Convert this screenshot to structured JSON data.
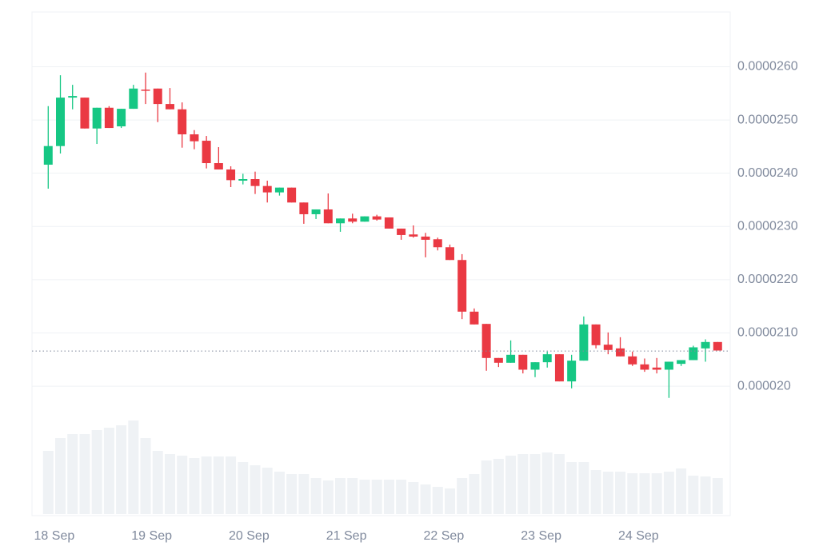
{
  "chart_data": {
    "type": "candlestick",
    "x": [
      -1.5,
      1.5,
      4.5,
      7.5,
      10.5,
      13.5,
      16.5,
      19.5,
      22.5,
      25.5,
      28.5,
      31.5,
      34.5,
      37.5,
      40.5,
      43.5,
      46.5,
      49.5,
      52.5,
      55.5,
      58.5,
      61.5,
      64.5,
      67.5,
      70.5,
      73.5,
      76.5,
      79.5,
      82.5,
      85.5,
      88.5,
      91.5,
      94.5,
      97.5,
      100.5,
      103.5,
      106.5,
      109.5,
      112.5,
      115.5,
      118.5,
      121.5,
      124.5,
      127.5,
      130.5,
      133.5,
      136.5,
      139.5,
      142.5,
      145.5,
      148.5,
      151.5,
      154.5,
      157.5,
      160.5,
      163.5
    ],
    "open": [
      2.416e-05,
      2.451e-05,
      2.542e-05,
      2.542e-05,
      2.484e-05,
      2.523e-05,
      2.488e-05,
      2.521e-05,
      2.557e-05,
      2.559e-05,
      2.53e-05,
      2.52e-05,
      2.473e-05,
      2.461e-05,
      2.419e-05,
      2.407e-05,
      2.386e-05,
      2.389e-05,
      2.376e-05,
      2.364e-05,
      2.373e-05,
      2.345e-05,
      2.323e-05,
      2.332e-05,
      2.306e-05,
      2.315e-05,
      2.309e-05,
      2.319e-05,
      2.317e-05,
      2.296e-05,
      2.285e-05,
      2.281e-05,
      2.276e-05,
      2.261e-05,
      2.237e-05,
      2.14e-05,
      2.117e-05,
      2.053e-05,
      2.044e-05,
      2.059e-05,
      2.031e-05,
      2.045e-05,
      2.06e-05,
      2.009e-05,
      2.048e-05,
      2.116e-05,
      2.078e-05,
      2.071e-05,
      2.056e-05,
      2.041e-05,
      2.035e-05,
      2.031e-05,
      2.042e-05,
      2.049e-05,
      2.071e-05,
      2.083e-05
    ],
    "high": [
      2.526e-05,
      2.584e-05,
      2.566e-05,
      2.542e-05,
      2.523e-05,
      2.526e-05,
      2.521e-05,
      2.566e-05,
      2.589e-05,
      2.559e-05,
      2.56e-05,
      2.533e-05,
      2.481e-05,
      2.47e-05,
      2.449e-05,
      2.413e-05,
      2.399e-05,
      2.403e-05,
      2.386e-05,
      2.373e-05,
      2.373e-05,
      2.345e-05,
      2.332e-05,
      2.362e-05,
      2.315e-05,
      2.324e-05,
      2.319e-05,
      2.322e-05,
      2.317e-05,
      2.296e-05,
      2.302e-05,
      2.288e-05,
      2.279e-05,
      2.266e-05,
      2.248e-05,
      2.146e-05,
      2.117e-05,
      2.053e-05,
      2.086e-05,
      2.059e-05,
      2.045e-05,
      2.065e-05,
      2.06e-05,
      2.059e-05,
      2.131e-05,
      2.116e-05,
      2.101e-05,
      2.092e-05,
      2.065e-05,
      2.052e-05,
      2.053e-05,
      2.046e-05,
      2.049e-05,
      2.076e-05,
      2.088e-05,
      2.083e-05
    ],
    "low": [
      2.371e-05,
      2.437e-05,
      2.52e-05,
      2.484e-05,
      2.455e-05,
      2.485e-05,
      2.485e-05,
      2.521e-05,
      2.53e-05,
      2.496e-05,
      2.52e-05,
      2.448e-05,
      2.445e-05,
      2.409e-05,
      2.407e-05,
      2.374e-05,
      2.379e-05,
      2.361e-05,
      2.345e-05,
      2.358e-05,
      2.345e-05,
      2.305e-05,
      2.314e-05,
      2.306e-05,
      2.29e-05,
      2.306e-05,
      2.309e-05,
      2.311e-05,
      2.296e-05,
      2.275e-05,
      2.279e-05,
      2.242e-05,
      2.255e-05,
      2.237e-05,
      2.126e-05,
      2.116e-05,
      2.029e-05,
      2.036e-05,
      2.044e-05,
      2.024e-05,
      2.017e-05,
      2.035e-05,
      2.009e-05,
      1.996e-05,
      2.048e-05,
      2.071e-05,
      2.06e-05,
      2.056e-05,
      2.038e-05,
      2.027e-05,
      2.024e-05,
      1.978e-05,
      2.038e-05,
      2.049e-05,
      2.046e-05,
      2.067e-05
    ],
    "close": [
      2.451e-05,
      2.542e-05,
      2.545e-05,
      2.484e-05,
      2.523e-05,
      2.485e-05,
      2.521e-05,
      2.559e-05,
      2.556e-05,
      2.53e-05,
      2.52e-05,
      2.473e-05,
      2.46e-05,
      2.419e-05,
      2.407e-05,
      2.387e-05,
      2.389e-05,
      2.376e-05,
      2.364e-05,
      2.373e-05,
      2.345e-05,
      2.323e-05,
      2.332e-05,
      2.306e-05,
      2.315e-05,
      2.309e-05,
      2.319e-05,
      2.313e-05,
      2.296e-05,
      2.284e-05,
      2.281e-05,
      2.275e-05,
      2.261e-05,
      2.237e-05,
      2.14e-05,
      2.116e-05,
      2.053e-05,
      2.044e-05,
      2.059e-05,
      2.031e-05,
      2.045e-05,
      2.06e-05,
      2.009e-05,
      2.048e-05,
      2.116e-05,
      2.077e-05,
      2.068e-05,
      2.056e-05,
      2.041e-05,
      2.031e-05,
      2.031e-05,
      2.046e-05,
      2.049e-05,
      2.073e-05,
      2.083e-05,
      2.067e-05
    ],
    "volume": [
      79,
      95,
      100,
      100,
      105,
      108,
      111,
      117,
      95,
      79,
      75,
      73,
      70,
      72,
      72,
      72,
      65,
      61,
      58,
      53,
      50,
      50,
      45,
      42,
      45,
      45,
      43,
      43,
      43,
      43,
      40,
      37,
      34,
      32,
      45,
      50,
      67,
      69,
      73,
      75,
      75,
      77,
      75,
      65,
      65,
      55,
      53,
      53,
      51,
      51,
      51,
      53,
      57,
      48,
      47,
      45
    ],
    "up_color": "#16c784",
    "down_color": "#ea3943",
    "volume_color": "#eff2f5",
    "price_line": 2.066e-05,
    "xlim": [
      -5.5,
      166.6
    ],
    "ylim": [
      1.944e-05,
      2.704e-05
    ],
    "vlim": [
      0,
      140
    ],
    "grid": true,
    "yticks": [
      {
        "value": 2.6e-05,
        "label": "0.0000260"
      },
      {
        "value": 2.5e-05,
        "label": "0.0000250"
      },
      {
        "value": 2.4e-05,
        "label": "0.0000240"
      },
      {
        "value": 2.3e-05,
        "label": "0.0000230"
      },
      {
        "value": 2.2e-05,
        "label": "0.0000220"
      },
      {
        "value": 2.1e-05,
        "label": "0.0000210"
      },
      {
        "value": 2e-05,
        "label": "0.000020"
      }
    ],
    "xticks": [
      {
        "value": 0,
        "label": "18 Sep"
      },
      {
        "value": 24,
        "label": "19 Sep"
      },
      {
        "value": 48,
        "label": "20 Sep"
      },
      {
        "value": 72,
        "label": "21 Sep"
      },
      {
        "value": 96,
        "label": "22 Sep"
      },
      {
        "value": 120,
        "label": "23 Sep"
      },
      {
        "value": 144,
        "label": "24 Sep"
      }
    ]
  }
}
